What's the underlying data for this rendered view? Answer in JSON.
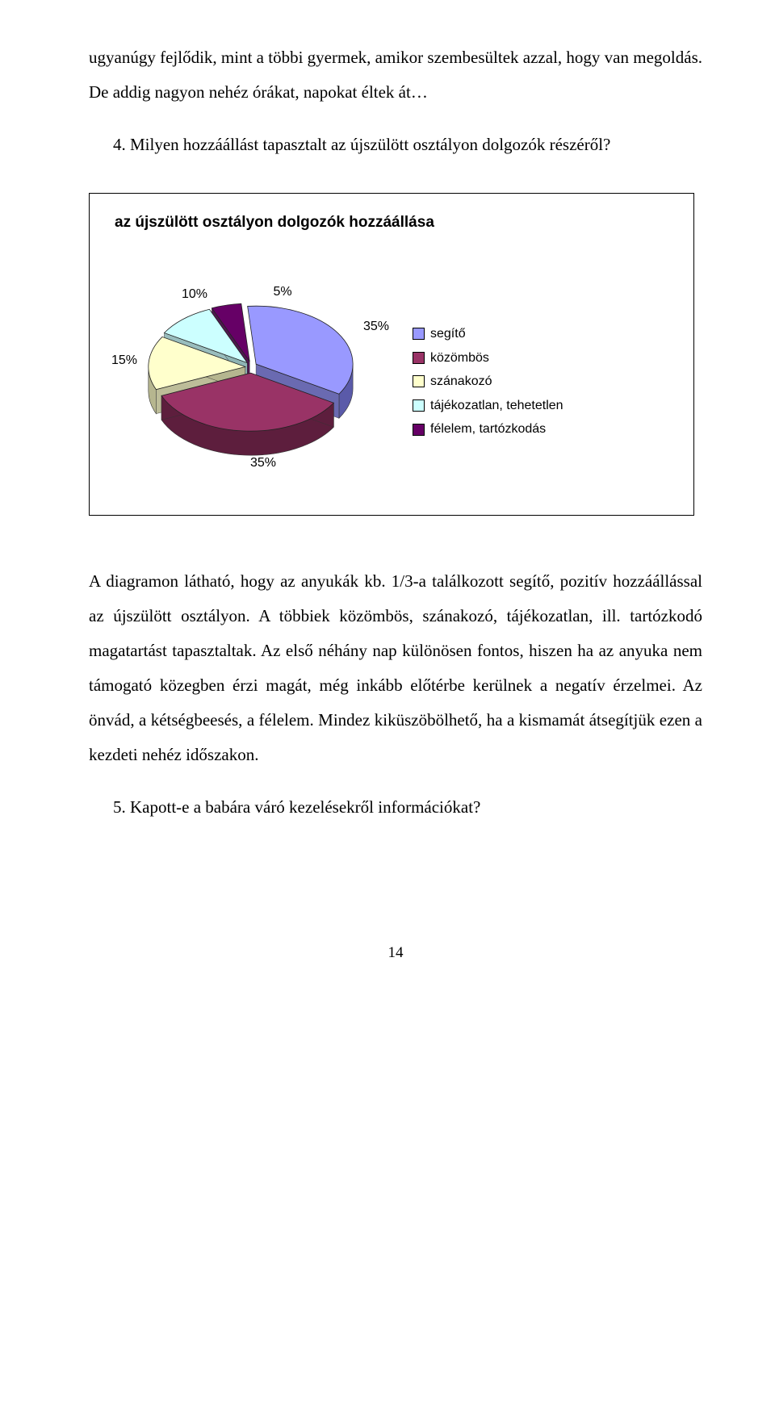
{
  "intro": "ugyanúgy fejlődik, mint a többi gyermek, amikor szembesültek azzal, hogy van megoldás. De addig nagyon nehéz órákat, napokat éltek át…",
  "q4": "4. Milyen hozzáállást tapasztalt az újszülött osztályon dolgozók részéről?",
  "chart": {
    "title": "az újszülött osztályon dolgozók hozzáállása",
    "type": "pie3d",
    "background_color": "#ffffff",
    "border_color": "#000000",
    "slices": [
      {
        "label": "segítő",
        "value": 35,
        "color": "#9999ff",
        "side_color": "#5a5aa9",
        "label_text": "35%"
      },
      {
        "label": "közömbös",
        "value": 35,
        "color": "#993366",
        "side_color": "#5d1e3d",
        "label_text": "35%"
      },
      {
        "label": "szánakozó",
        "value": 15,
        "color": "#ffffcc",
        "side_color": "#b6b68f",
        "label_text": "15%"
      },
      {
        "label": "tájékozatlan, tehetetlen",
        "value": 10,
        "color": "#ccffff",
        "side_color": "#8fb6b6",
        "label_text": "10%"
      },
      {
        "label": "félelem, tartózkodás",
        "value": 5,
        "color": "#660066",
        "side_color": "#3d003d",
        "label_text": "5%"
      }
    ],
    "label_fontsize": 16,
    "label_color": "#000000",
    "legend_swatch_border": "#000000"
  },
  "analysis": "A diagramon látható, hogy az anyukák kb. 1/3-a találkozott segítő, pozitív hozzáállással az újszülött osztályon. A többiek közömbös, szánakozó, tájékozatlan, ill. tartózkodó magatartást tapasztaltak. Az első néhány nap különösen fontos, hiszen ha az anyuka nem támogató közegben érzi magát, még inkább előtérbe kerülnek a negatív érzelmei. Az önvád, a kétségbeesés, a félelem. Mindez kiküszöbölhető, ha a kismamát átsegítjük ezen a kezdeti nehéz időszakon.",
  "q5": "5. Kapott-e a babára váró kezelésekről információkat?",
  "page_number": "14"
}
